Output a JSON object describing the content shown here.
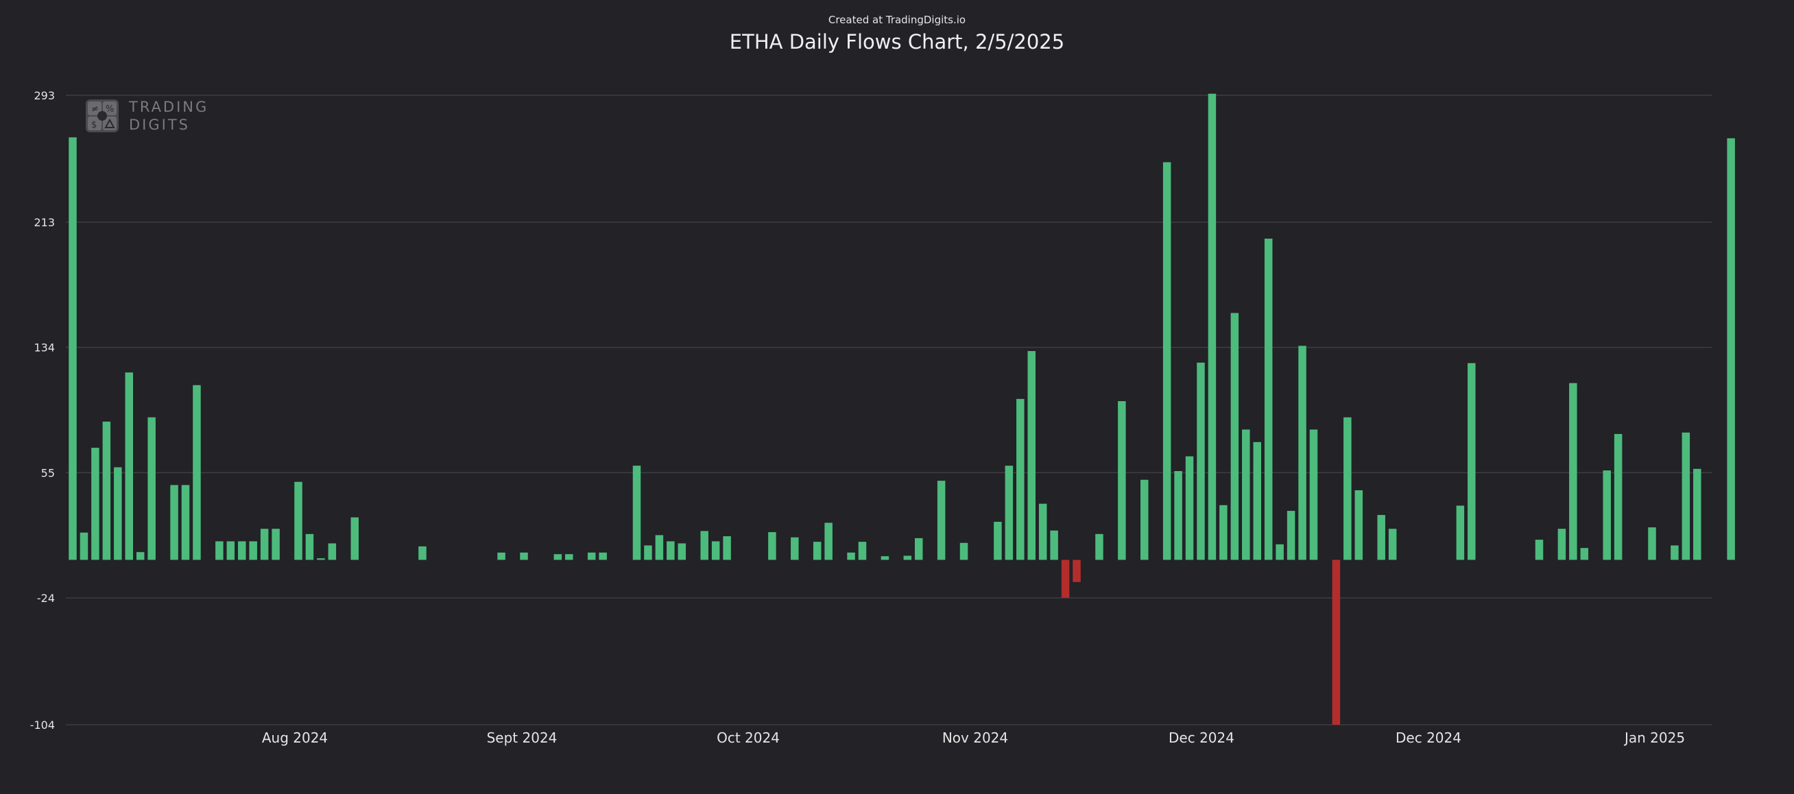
{
  "header": {
    "credit": "Created at TradingDigits.io",
    "title": "ETHA Daily Flows Chart, 2/5/2025"
  },
  "logo": {
    "line1": "TRADING",
    "line2": "DIGITS",
    "icon": "trading-digits-logo-icon"
  },
  "colors": {
    "background": "#222227",
    "positive": "#4dbb7c",
    "negative": "#b42d2d",
    "grid": "#3d3d44",
    "text": "#e6e6e6"
  },
  "chart_data": {
    "type": "bar",
    "title": "ETHA Daily Flows Chart, 2/5/2025",
    "ylim": [
      -104,
      293
    ],
    "yticks": [
      -104,
      -24,
      55,
      134,
      213,
      293
    ],
    "ytick_labels": [
      "-104",
      "-24",
      "55",
      "134",
      "213",
      "293"
    ],
    "xtick_labels": [
      "Aug 2024",
      "Sept 2024",
      "Oct 2024",
      "Nov 2024",
      "Dec 2024",
      "Dec 2024",
      "Jan 2025"
    ],
    "grid": true,
    "values": [
      266.5,
      17.2,
      70.7,
      87.2,
      58.4,
      118.2,
      4.9,
      89.9,
      0,
      47.2,
      47.2,
      110.2,
      0,
      11.7,
      11.7,
      11.7,
      11.7,
      19.6,
      19.6,
      0,
      49.2,
      16.3,
      1,
      10.4,
      0,
      26.8,
      0,
      0,
      0,
      0,
      0,
      8.5,
      0,
      0,
      0,
      0,
      0,
      0,
      4.6,
      0,
      4.6,
      0,
      0,
      3.6,
      3.6,
      0,
      4.6,
      4.6,
      0,
      0,
      59.4,
      9.1,
      15.6,
      11.7,
      10.4,
      0,
      18.2,
      11.7,
      14.9,
      0,
      0,
      0,
      17.5,
      0,
      14.2,
      0,
      11.4,
      23.4,
      0,
      4.6,
      11.4,
      0,
      2.3,
      0,
      2.6,
      13.7,
      0,
      49.9,
      0,
      10.7,
      0,
      0,
      24,
      59.4,
      101.5,
      131.7,
      35.4,
      18.5,
      -23.9,
      -14,
      0,
      16.3,
      0,
      100.1,
      0,
      50.5,
      0,
      250.8,
      56,
      65.3,
      124.4,
      294,
      34.5,
      155.7,
      82.2,
      74.3,
      202.6,
      9.8,
      30.9,
      135,
      82.2,
      0,
      -104,
      89.9,
      43.9,
      0,
      28.3,
      19.6,
      0,
      0,
      0,
      0,
      0,
      34.2,
      124.1,
      0,
      0,
      0,
      0,
      0,
      12.7,
      0,
      19.6,
      111.5,
      7.5,
      0,
      56.4,
      79.4,
      0,
      0,
      20.5,
      0,
      9.1,
      80.3,
      57.4,
      0,
      0,
      265.9
    ]
  }
}
